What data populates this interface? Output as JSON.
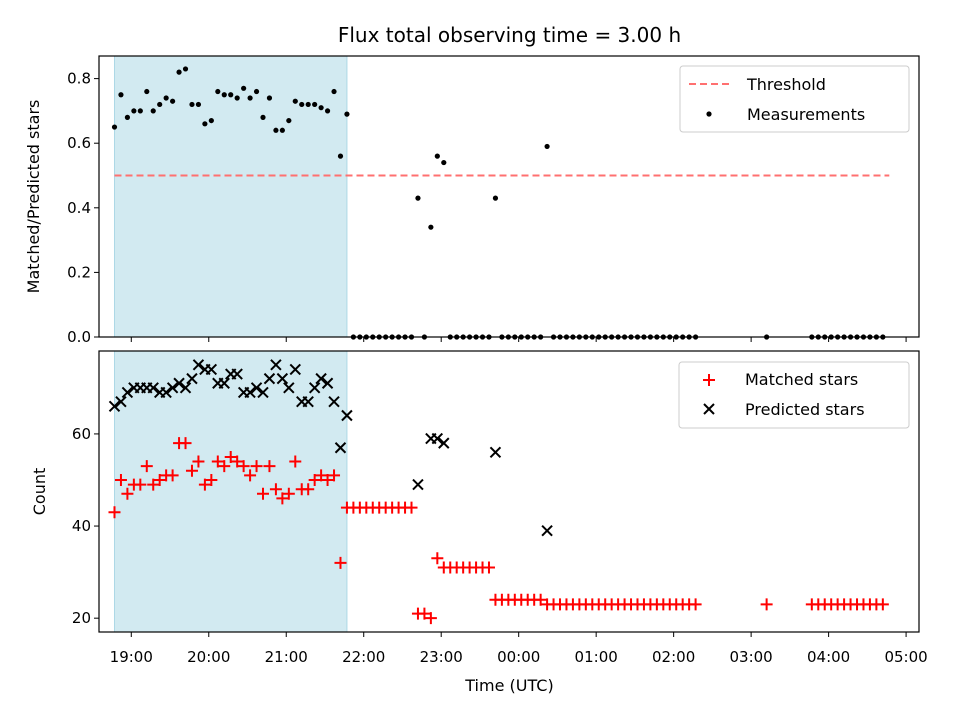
{
  "title": "Flux total observing time = 3.00 h",
  "xlabel": "Time (UTC)",
  "colors": {
    "threshold": "#ff7070",
    "shade": "#add8e6",
    "matched": "#ff0000",
    "predicted": "#000000",
    "measurement": "#000000"
  },
  "chart_data": [
    {
      "type": "scatter",
      "name": "ratio",
      "ylabel": "Matched/Predicted stars",
      "ylim": [
        0,
        0.87
      ],
      "yticks": [
        {
          "v": 0.0,
          "label": "0.0"
        },
        {
          "v": 0.2,
          "label": "0.2"
        },
        {
          "v": 0.4,
          "label": "0.4"
        },
        {
          "v": 0.6,
          "label": "0.6"
        },
        {
          "v": 0.8,
          "label": "0.8"
        }
      ],
      "x_range": [
        "18:35",
        "05:10"
      ],
      "shaded_interval": [
        "18:47",
        "21:47"
      ],
      "threshold": {
        "label": "Threshold",
        "y": 0.5,
        "x": [
          "18:47",
          "04:47"
        ],
        "style": "dashed"
      },
      "legend": {
        "placement": "top-right",
        "entries": [
          "Threshold",
          "Measurements"
        ]
      },
      "series": [
        {
          "name": "Measurements",
          "marker": "dot",
          "points": [
            [
              "18:47",
              0.65
            ],
            [
              "18:52",
              0.75
            ],
            [
              "18:57",
              0.68
            ],
            [
              "19:02",
              0.7
            ],
            [
              "19:07",
              0.7
            ],
            [
              "19:12",
              0.76
            ],
            [
              "19:17",
              0.7
            ],
            [
              "19:22",
              0.72
            ],
            [
              "19:27",
              0.74
            ],
            [
              "19:32",
              0.73
            ],
            [
              "19:37",
              0.82
            ],
            [
              "19:42",
              0.83
            ],
            [
              "19:47",
              0.72
            ],
            [
              "19:52",
              0.72
            ],
            [
              "19:57",
              0.66
            ],
            [
              "20:02",
              0.67
            ],
            [
              "20:07",
              0.76
            ],
            [
              "20:12",
              0.75
            ],
            [
              "20:17",
              0.75
            ],
            [
              "20:22",
              0.74
            ],
            [
              "20:27",
              0.77
            ],
            [
              "20:32",
              0.74
            ],
            [
              "20:37",
              0.76
            ],
            [
              "20:42",
              0.68
            ],
            [
              "20:47",
              0.74
            ],
            [
              "20:52",
              0.64
            ],
            [
              "20:57",
              0.64
            ],
            [
              "21:02",
              0.67
            ],
            [
              "21:07",
              0.73
            ],
            [
              "21:12",
              0.72
            ],
            [
              "21:17",
              0.72
            ],
            [
              "21:22",
              0.72
            ],
            [
              "21:27",
              0.71
            ],
            [
              "21:32",
              0.7
            ],
            [
              "21:37",
              0.76
            ],
            [
              "21:42",
              0.56
            ],
            [
              "21:47",
              0.69
            ],
            [
              "21:52",
              0
            ],
            [
              "21:57",
              0
            ],
            [
              "22:02",
              0
            ],
            [
              "22:07",
              0
            ],
            [
              "22:12",
              0
            ],
            [
              "22:17",
              0
            ],
            [
              "22:22",
              0
            ],
            [
              "22:27",
              0
            ],
            [
              "22:32",
              0
            ],
            [
              "22:37",
              0
            ],
            [
              "22:42",
              0.43
            ],
            [
              "22:47",
              0
            ],
            [
              "22:52",
              0.34
            ],
            [
              "22:57",
              0.56
            ],
            [
              "23:02",
              0.54
            ],
            [
              "23:07",
              0
            ],
            [
              "23:12",
              0
            ],
            [
              "23:17",
              0
            ],
            [
              "23:22",
              0
            ],
            [
              "23:27",
              0
            ],
            [
              "23:32",
              0
            ],
            [
              "23:37",
              0
            ],
            [
              "23:42",
              0.43
            ],
            [
              "23:47",
              0
            ],
            [
              "23:52",
              0
            ],
            [
              "23:57",
              0
            ],
            [
              "00:02",
              0
            ],
            [
              "00:07",
              0
            ],
            [
              "00:12",
              0
            ],
            [
              "00:17",
              0
            ],
            [
              "00:22",
              0.59
            ],
            [
              "00:27",
              0
            ],
            [
              "00:32",
              0
            ],
            [
              "00:37",
              0
            ],
            [
              "00:42",
              0
            ],
            [
              "00:47",
              0
            ],
            [
              "00:52",
              0
            ],
            [
              "00:57",
              0
            ],
            [
              "01:02",
              0
            ],
            [
              "01:07",
              0
            ],
            [
              "01:12",
              0
            ],
            [
              "01:17",
              0
            ],
            [
              "01:22",
              0
            ],
            [
              "01:27",
              0
            ],
            [
              "01:32",
              0
            ],
            [
              "01:37",
              0
            ],
            [
              "01:42",
              0
            ],
            [
              "01:47",
              0
            ],
            [
              "01:52",
              0
            ],
            [
              "01:57",
              0
            ],
            [
              "02:02",
              0
            ],
            [
              "02:07",
              0
            ],
            [
              "02:12",
              0
            ],
            [
              "02:17",
              0
            ],
            [
              "03:12",
              0
            ],
            [
              "03:47",
              0
            ],
            [
              "03:52",
              0
            ],
            [
              "03:57",
              0
            ],
            [
              "04:02",
              0
            ],
            [
              "04:07",
              0
            ],
            [
              "04:12",
              0
            ],
            [
              "04:17",
              0
            ],
            [
              "04:22",
              0
            ],
            [
              "04:27",
              0
            ],
            [
              "04:32",
              0
            ],
            [
              "04:37",
              0
            ],
            [
              "04:42",
              0
            ]
          ]
        }
      ]
    },
    {
      "type": "scatter",
      "name": "counts",
      "ylabel": "Count",
      "ylim": [
        17,
        78
      ],
      "yticks": [
        {
          "v": 20,
          "label": "20"
        },
        {
          "v": 40,
          "label": "40"
        },
        {
          "v": 60,
          "label": "60"
        }
      ],
      "x_range": [
        "18:35",
        "05:10"
      ],
      "xticks": [
        "19:00",
        "20:00",
        "21:00",
        "22:00",
        "23:00",
        "00:00",
        "01:00",
        "02:00",
        "03:00",
        "04:00",
        "05:00"
      ],
      "shaded_interval": [
        "18:47",
        "21:47"
      ],
      "legend": {
        "placement": "top-right",
        "entries": [
          "Matched stars",
          "Predicted stars"
        ]
      },
      "series": [
        {
          "name": "Matched stars",
          "marker": "plus",
          "points": [
            [
              "18:47",
              43
            ],
            [
              "18:52",
              50
            ],
            [
              "18:57",
              47
            ],
            [
              "19:02",
              49
            ],
            [
              "19:07",
              49
            ],
            [
              "19:12",
              53
            ],
            [
              "19:17",
              49
            ],
            [
              "19:22",
              50
            ],
            [
              "19:27",
              51
            ],
            [
              "19:32",
              51
            ],
            [
              "19:37",
              58
            ],
            [
              "19:42",
              58
            ],
            [
              "19:47",
              52
            ],
            [
              "19:52",
              54
            ],
            [
              "19:57",
              49
            ],
            [
              "20:02",
              50
            ],
            [
              "20:07",
              54
            ],
            [
              "20:12",
              53
            ],
            [
              "20:17",
              55
            ],
            [
              "20:22",
              54
            ],
            [
              "20:27",
              53
            ],
            [
              "20:32",
              51
            ],
            [
              "20:37",
              53
            ],
            [
              "20:42",
              47
            ],
            [
              "20:47",
              53
            ],
            [
              "20:52",
              48
            ],
            [
              "20:57",
              46
            ],
            [
              "21:02",
              47
            ],
            [
              "21:07",
              54
            ],
            [
              "21:12",
              48
            ],
            [
              "21:17",
              48
            ],
            [
              "21:22",
              50
            ],
            [
              "21:27",
              51
            ],
            [
              "21:32",
              50
            ],
            [
              "21:37",
              51
            ],
            [
              "21:42",
              32
            ],
            [
              "21:47",
              44
            ],
            [
              "21:52",
              44
            ],
            [
              "21:57",
              44
            ],
            [
              "22:02",
              44
            ],
            [
              "22:07",
              44
            ],
            [
              "22:12",
              44
            ],
            [
              "22:17",
              44
            ],
            [
              "22:22",
              44
            ],
            [
              "22:27",
              44
            ],
            [
              "22:32",
              44
            ],
            [
              "22:37",
              44
            ],
            [
              "22:42",
              21
            ],
            [
              "22:47",
              21
            ],
            [
              "22:52",
              20
            ],
            [
              "22:57",
              33
            ],
            [
              "23:02",
              31
            ],
            [
              "23:07",
              31
            ],
            [
              "23:12",
              31
            ],
            [
              "23:17",
              31
            ],
            [
              "23:22",
              31
            ],
            [
              "23:27",
              31
            ],
            [
              "23:32",
              31
            ],
            [
              "23:37",
              31
            ],
            [
              "23:42",
              24
            ],
            [
              "23:47",
              24
            ],
            [
              "23:52",
              24
            ],
            [
              "23:57",
              24
            ],
            [
              "00:02",
              24
            ],
            [
              "00:07",
              24
            ],
            [
              "00:12",
              24
            ],
            [
              "00:17",
              24
            ],
            [
              "00:22",
              23
            ],
            [
              "00:27",
              23
            ],
            [
              "00:32",
              23
            ],
            [
              "00:37",
              23
            ],
            [
              "00:42",
              23
            ],
            [
              "00:47",
              23
            ],
            [
              "00:52",
              23
            ],
            [
              "00:57",
              23
            ],
            [
              "01:02",
              23
            ],
            [
              "01:07",
              23
            ],
            [
              "01:12",
              23
            ],
            [
              "01:17",
              23
            ],
            [
              "01:22",
              23
            ],
            [
              "01:27",
              23
            ],
            [
              "01:32",
              23
            ],
            [
              "01:37",
              23
            ],
            [
              "01:42",
              23
            ],
            [
              "01:47",
              23
            ],
            [
              "01:52",
              23
            ],
            [
              "01:57",
              23
            ],
            [
              "02:02",
              23
            ],
            [
              "02:07",
              23
            ],
            [
              "02:12",
              23
            ],
            [
              "02:17",
              23
            ],
            [
              "03:12",
              23
            ],
            [
              "03:47",
              23
            ],
            [
              "03:52",
              23
            ],
            [
              "03:57",
              23
            ],
            [
              "04:02",
              23
            ],
            [
              "04:07",
              23
            ],
            [
              "04:12",
              23
            ],
            [
              "04:17",
              23
            ],
            [
              "04:22",
              23
            ],
            [
              "04:27",
              23
            ],
            [
              "04:32",
              23
            ],
            [
              "04:37",
              23
            ],
            [
              "04:42",
              23
            ]
          ]
        },
        {
          "name": "Predicted stars",
          "marker": "x",
          "points": [
            [
              "18:47",
              66
            ],
            [
              "18:52",
              67
            ],
            [
              "18:57",
              69
            ],
            [
              "19:02",
              70
            ],
            [
              "19:07",
              70
            ],
            [
              "19:12",
              70
            ],
            [
              "19:17",
              70
            ],
            [
              "19:22",
              69
            ],
            [
              "19:27",
              69
            ],
            [
              "19:32",
              70
            ],
            [
              "19:37",
              71
            ],
            [
              "19:42",
              70
            ],
            [
              "19:47",
              72
            ],
            [
              "19:52",
              75
            ],
            [
              "19:57",
              74
            ],
            [
              "20:02",
              74
            ],
            [
              "20:07",
              71
            ],
            [
              "20:12",
              71
            ],
            [
              "20:17",
              73
            ],
            [
              "20:22",
              73
            ],
            [
              "20:27",
              69
            ],
            [
              "20:32",
              69
            ],
            [
              "20:37",
              70
            ],
            [
              "20:42",
              69
            ],
            [
              "20:47",
              72
            ],
            [
              "20:52",
              75
            ],
            [
              "20:57",
              72
            ],
            [
              "21:02",
              70
            ],
            [
              "21:07",
              74
            ],
            [
              "21:12",
              67
            ],
            [
              "21:17",
              67
            ],
            [
              "21:22",
              70
            ],
            [
              "21:27",
              72
            ],
            [
              "21:32",
              71
            ],
            [
              "21:37",
              67
            ],
            [
              "21:42",
              57
            ],
            [
              "21:47",
              64
            ],
            [
              "22:42",
              49
            ],
            [
              "22:52",
              59
            ],
            [
              "22:57",
              59
            ],
            [
              "23:02",
              58
            ],
            [
              "23:42",
              56
            ],
            [
              "00:22",
              39
            ]
          ]
        }
      ]
    }
  ]
}
